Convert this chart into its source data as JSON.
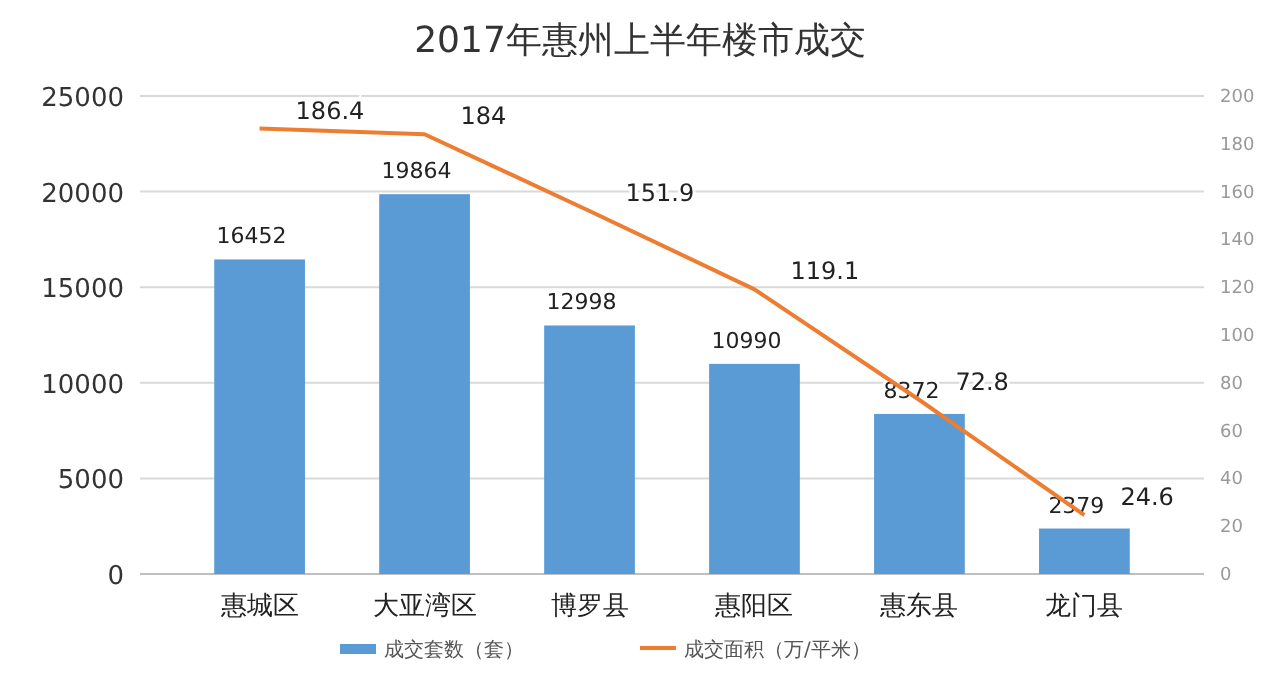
{
  "chart_data": {
    "type": "bar",
    "title": "2017年惠州上半年楼市成交",
    "categories": [
      "惠城区",
      "大亚湾区",
      "博罗县",
      "惠阳区",
      "惠东县",
      "龙门县"
    ],
    "series": [
      {
        "name": "成交套数（套）",
        "color": "#5b9bd5",
        "values": [
          16452,
          19864,
          12998,
          10990,
          8372,
          2379
        ]
      },
      {
        "name": "成交面积（万/平米）",
        "type": "line",
        "axis": "y2",
        "color": "#ed7d31",
        "values": [
          186.4,
          184,
          151.9,
          119.1,
          72.8,
          24.6
        ]
      }
    ],
    "ylim": [
      0,
      25000
    ],
    "yticks": [
      0,
      5000,
      10000,
      15000,
      20000,
      25000
    ],
    "y2lim": [
      0,
      200
    ],
    "y2ticks": [
      0,
      20,
      40,
      60,
      80,
      100,
      120,
      140,
      160,
      180,
      200
    ],
    "grid": "y",
    "legend": "bottom",
    "data_labels": true,
    "marker": "none"
  }
}
